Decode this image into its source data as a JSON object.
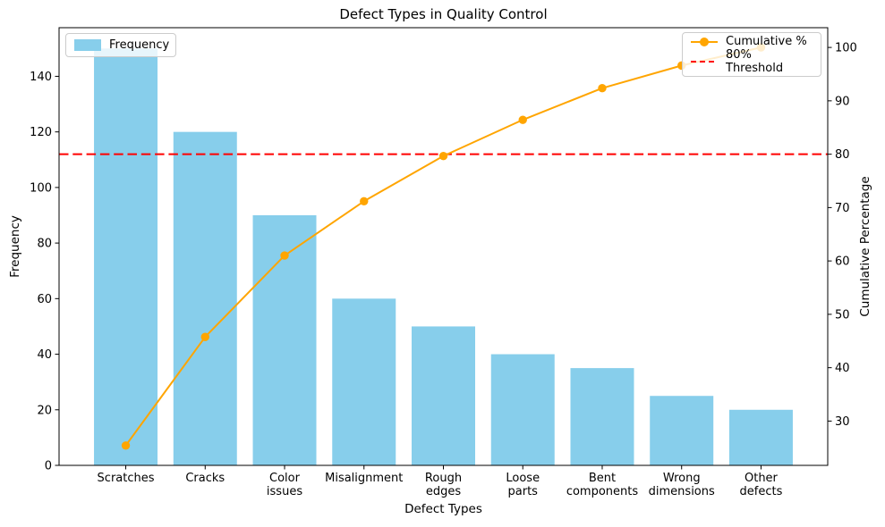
{
  "chart_data": {
    "type": "pareto (bar + line)",
    "title": "Defect Types in Quality Control",
    "xlabel": "Defect Types",
    "ylabel_left": "Frequency",
    "ylabel_right": "Cumulative Percentage",
    "categories": [
      "Scratches",
      "Cracks",
      "Color\nissues",
      "Misalignment",
      "Rough\nedges",
      "Loose\nparts",
      "Bent\ncomponents",
      "Wrong\ndimensions",
      "Other\ndefects"
    ],
    "series": [
      {
        "name": "Frequency",
        "type": "bar",
        "color": "#87CEEB",
        "axis": "left",
        "values": [
          150,
          120,
          90,
          60,
          50,
          40,
          35,
          25,
          20
        ]
      },
      {
        "name": "Cumulative %",
        "type": "line",
        "color": "#FFA500",
        "axis": "right",
        "values": [
          25.42,
          45.76,
          61.02,
          71.19,
          79.66,
          86.44,
          92.37,
          96.61,
          100.0
        ]
      }
    ],
    "threshold": {
      "label": "80% Threshold",
      "value": 80,
      "color": "#FF0000",
      "style": "dashed"
    },
    "yticks_left": [
      0,
      20,
      40,
      60,
      80,
      100,
      120,
      140
    ],
    "yticks_right": [
      30,
      40,
      50,
      60,
      70,
      80,
      90,
      100
    ],
    "ylim_left": [
      0,
      157.5
    ],
    "ylim_right": [
      21.7,
      103.7
    ],
    "xlim": [
      -0.84,
      8.84
    ],
    "grid": false,
    "legend_left": {
      "position": "upper left",
      "labels": [
        "Frequency"
      ]
    },
    "legend_right": {
      "position": "upper right",
      "labels": [
        "Cumulative %",
        "80% Threshold"
      ]
    }
  }
}
